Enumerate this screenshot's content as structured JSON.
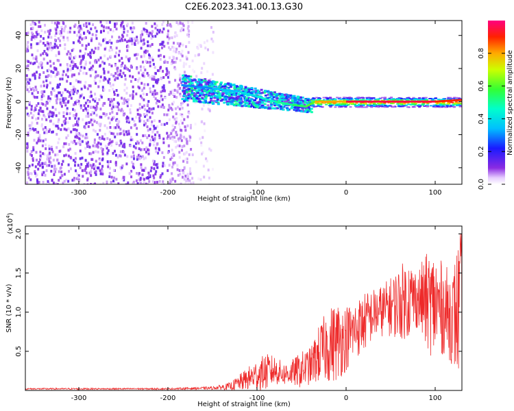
{
  "title": "C2E6.2023.341.00.13.G30",
  "colors": {
    "snr_line": "#ee2a2a",
    "signal_ridge": "#ff2a2a",
    "noise": "#7a1fff",
    "axis": "#000000"
  },
  "colorbar": {
    "label": "Normalized spectral amplitude",
    "ticks": [
      "0.0",
      "0.2",
      "0.4",
      "0.6",
      "0.8"
    ],
    "tick_values": [
      0.0,
      0.2,
      0.4,
      0.6,
      0.8
    ],
    "range": [
      0,
      1
    ],
    "colormap": "gist_rainbow (violet to red)"
  },
  "chart_data": [
    {
      "type": "heatmap",
      "title": "C2E6.2023.341.00.13.G30",
      "xlabel": "Height of straight line (km)",
      "ylabel": "Frequency (Hz)",
      "xlim": [
        -360,
        130
      ],
      "ylim": [
        -50,
        49
      ],
      "xticks": [
        -300,
        -200,
        -100,
        0,
        100
      ],
      "xtick_labels": [
        "-300",
        "-200",
        "-100",
        "0",
        "100"
      ],
      "yticks": [
        -40,
        -20,
        0,
        20,
        40
      ],
      "ytick_labels": [
        "-40",
        "-20",
        "0",
        "20",
        "40"
      ],
      "description_regions": [
        {
          "x_range": [
            -360,
            -175
          ],
          "freq_range": [
            -50,
            49
          ],
          "amplitude": 0.1,
          "kind": "broadband noise"
        },
        {
          "x_range": [
            -185,
            -40
          ],
          "freq_range": [
            -12,
            16
          ],
          "amplitude": 0.35,
          "kind": "signal onset"
        },
        {
          "x_range": [
            -40,
            130
          ],
          "freq_range": [
            -3,
            3
          ],
          "amplitude": 0.9,
          "kind": "carrier"
        }
      ],
      "ridge": {
        "x": [
          -185,
          -150,
          -120,
          -100,
          -80,
          -60,
          -45,
          -35,
          0,
          50,
          100,
          130
        ],
        "freq": [
          10,
          8,
          6,
          3,
          0,
          -2,
          -3,
          0,
          0,
          0,
          0,
          1
        ],
        "amplitude": [
          0.3,
          0.35,
          0.4,
          0.45,
          0.5,
          0.55,
          0.6,
          0.8,
          0.95,
          0.95,
          0.9,
          0.85
        ]
      }
    },
    {
      "type": "line",
      "xlabel": "Height of straight line (km)",
      "ylabel": "SNR (10 * v/v)",
      "y_multiplier_label": "(x10",
      "y_multiplier_exp": "4",
      "y_multiplier_close": ")",
      "xlim": [
        -360,
        130
      ],
      "ylim": [
        0,
        2.1
      ],
      "xticks": [
        -300,
        -200,
        -100,
        0,
        100
      ],
      "xtick_labels": [
        "-300",
        "-200",
        "-100",
        "0",
        "100"
      ],
      "yticks": [
        0.5,
        1.0,
        1.5,
        2.0
      ],
      "ytick_labels": [
        "0.5",
        "1.0",
        "1.5",
        "2.0"
      ],
      "series": [
        {
          "x": [
            -360,
            -300,
            -200,
            -150,
            -130,
            -110,
            -100,
            -90,
            -80,
            -70,
            -60,
            -50,
            -40,
            -30,
            -20,
            -10,
            0,
            10,
            20,
            30,
            40,
            50,
            60,
            70,
            80,
            90,
            100,
            110,
            120,
            125,
            130
          ],
          "y": [
            0.02,
            0.02,
            0.02,
            0.03,
            0.05,
            0.12,
            0.18,
            0.22,
            0.25,
            0.2,
            0.22,
            0.25,
            0.3,
            0.45,
            0.55,
            0.6,
            0.65,
            0.75,
            0.85,
            0.95,
            1.0,
            1.05,
            1.1,
            1.15,
            1.15,
            1.1,
            1.05,
            1.0,
            0.9,
            0.95,
            1.1
          ],
          "y_peak": [
            0.03,
            0.03,
            0.03,
            0.05,
            0.1,
            0.3,
            0.4,
            0.47,
            0.45,
            0.35,
            0.4,
            0.5,
            0.55,
            0.85,
            1.05,
            1.15,
            1.1,
            1.15,
            1.25,
            1.3,
            1.35,
            1.45,
            1.6,
            1.7,
            1.55,
            1.75,
            1.8,
            1.6,
            1.55,
            1.9,
            2.08
          ]
        }
      ]
    }
  ]
}
